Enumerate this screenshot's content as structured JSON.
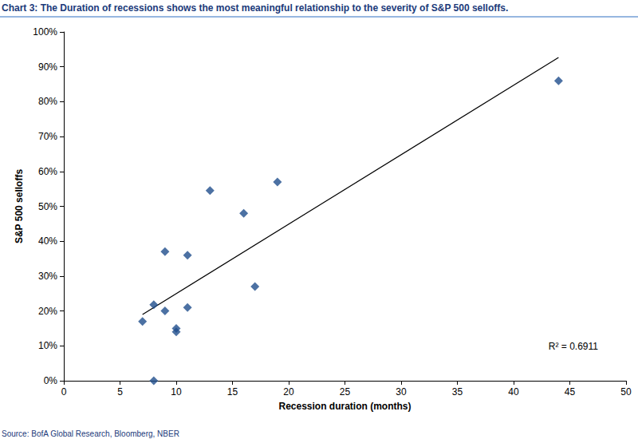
{
  "chart_data": {
    "type": "scatter",
    "title": "Chart 3: The Duration of recessions shows the most meaningful relationship to the severity of S&P 500 selloffs.",
    "source": "Source: BofA Global Research, Bloomberg, NBER",
    "x_label": "Recession duration (months)",
    "y_label": "S&P 500 selloffs",
    "x": [
      7,
      8,
      8,
      9,
      9,
      10,
      10,
      11,
      11,
      13,
      16,
      17,
      19,
      44
    ],
    "values": [
      17,
      21.8,
      0,
      37,
      20,
      15,
      14,
      36,
      21,
      54.5,
      48,
      27,
      57,
      86
    ],
    "color": "#1f4e8c",
    "marker": "diamond",
    "trendline": {
      "x": [
        7,
        44
      ],
      "values": [
        19,
        92.7
      ],
      "color": "#000000"
    },
    "annotations": [
      "R² = 0.6911"
    ],
    "xlim": [
      0,
      50
    ],
    "xticks": [
      0,
      5,
      10,
      15,
      20,
      25,
      30,
      35,
      40,
      45,
      50
    ],
    "ylim": [
      0,
      100
    ],
    "yticks": [
      {
        "value": 0,
        "label": "0%"
      },
      {
        "value": 10,
        "label": "10%"
      },
      {
        "value": 20,
        "label": "20%"
      },
      {
        "value": 30,
        "label": "30%"
      },
      {
        "value": 40,
        "label": "40%"
      },
      {
        "value": 50,
        "label": "50%"
      },
      {
        "value": 60,
        "label": "60%"
      },
      {
        "value": 70,
        "label": "70%"
      },
      {
        "value": 80,
        "label": "80%"
      },
      {
        "value": 90,
        "label": "90%"
      },
      {
        "value": 100,
        "label": "100%"
      }
    ],
    "grid": false
  }
}
